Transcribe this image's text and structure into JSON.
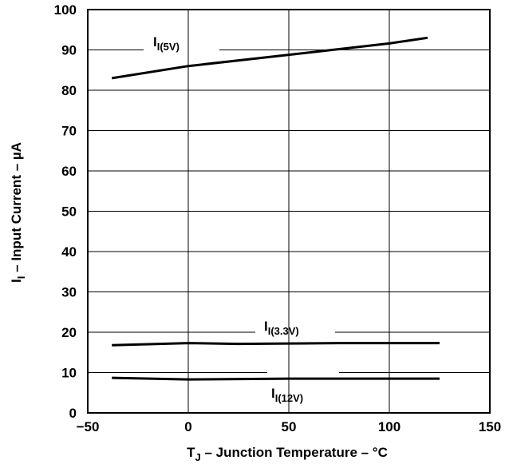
{
  "chart_data": {
    "type": "line",
    "xlabel": {
      "main": "T",
      "sub": "J",
      "rest": " – Junction Temperature – °C"
    },
    "ylabel": {
      "main": "I",
      "sub": "I",
      "rest": " – Input Current – µA"
    },
    "xlim": [
      -50,
      150
    ],
    "ylim": [
      0,
      100
    ],
    "x_ticks": [
      -50,
      0,
      50,
      100,
      150
    ],
    "y_ticks": [
      0,
      10,
      20,
      30,
      40,
      50,
      60,
      70,
      80,
      90,
      100
    ],
    "grid": true,
    "line_color": "#000000",
    "series": [
      {
        "name": "I(5V)",
        "label": {
          "main": "I",
          "sub": "I(5V)"
        },
        "x": [
          -38,
          0,
          50,
          100,
          119
        ],
        "y": [
          83,
          86,
          88.8,
          91.6,
          93
        ]
      },
      {
        "name": "I(3.3V)",
        "label": {
          "main": "I",
          "sub": "I(3.3V)"
        },
        "x": [
          -38,
          0,
          25,
          50,
          75,
          100,
          125
        ],
        "y": [
          16.8,
          17.3,
          17.1,
          17.2,
          17.3,
          17.3,
          17.3
        ]
      },
      {
        "name": "I(12V)",
        "label": {
          "main": "I",
          "sub": "I(12V)"
        },
        "x": [
          -38,
          0,
          50,
          100,
          125
        ],
        "y": [
          8.7,
          8.3,
          8.5,
          8.5,
          8.5
        ]
      }
    ]
  }
}
